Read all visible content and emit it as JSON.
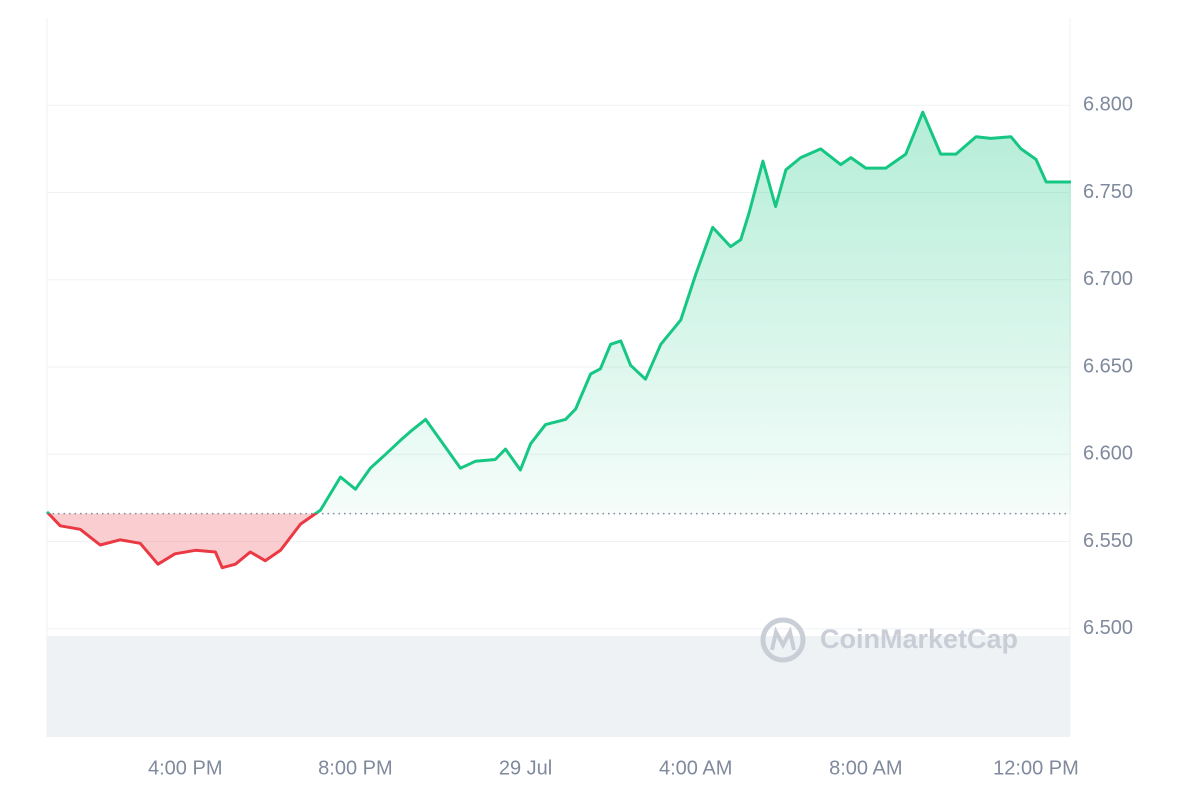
{
  "chart_data": {
    "type": "line",
    "watermark": "CoinMarketCap",
    "x": [
      12.75,
      13.06,
      13.53,
      14.0,
      14.47,
      14.94,
      15.36,
      15.76,
      16.24,
      16.71,
      16.87,
      17.18,
      17.53,
      17.88,
      18.24,
      18.71,
      19.18,
      19.65,
      20.0,
      20.35,
      20.71,
      21.06,
      21.34,
      21.65,
      22.0,
      22.47,
      22.82,
      23.29,
      23.53,
      23.88,
      24.12,
      24.47,
      24.94,
      25.18,
      25.53,
      25.76,
      26.0,
      26.24,
      26.47,
      26.82,
      27.18,
      27.65,
      28.0,
      28.4,
      28.82,
      29.06,
      29.25,
      29.58,
      29.88,
      30.12,
      30.47,
      30.94,
      31.41,
      31.65,
      32.0,
      32.47,
      32.94,
      33.34,
      33.76,
      34.12,
      34.59,
      34.94,
      35.41,
      35.65,
      36.0,
      36.24,
      36.59,
      36.82
    ],
    "values": [
      6.567,
      6.559,
      6.557,
      6.548,
      6.551,
      6.549,
      6.537,
      6.543,
      6.545,
      6.544,
      6.535,
      6.537,
      6.544,
      6.539,
      6.545,
      6.56,
      6.568,
      6.587,
      6.58,
      6.592,
      6.6,
      6.608,
      6.614,
      6.62,
      6.608,
      6.592,
      6.596,
      6.597,
      6.603,
      6.591,
      6.606,
      6.617,
      6.62,
      6.626,
      6.646,
      6.649,
      6.663,
      6.665,
      6.651,
      6.643,
      6.663,
      6.677,
      6.703,
      6.73,
      6.719,
      6.723,
      6.738,
      6.768,
      6.742,
      6.763,
      6.77,
      6.775,
      6.766,
      6.77,
      6.764,
      6.764,
      6.772,
      6.796,
      6.772,
      6.772,
      6.782,
      6.781,
      6.782,
      6.775,
      6.769,
      6.756,
      6.756,
      6.756
    ],
    "baseline": 6.566,
    "up_color": "#16c784",
    "down_color": "#ea3943",
    "xlim": [
      12.75,
      36.8
    ],
    "xticks": [
      {
        "value": 16,
        "label": "4:00 PM"
      },
      {
        "value": 20,
        "label": "8:00 PM"
      },
      {
        "value": 24,
        "label": "29 Jul"
      },
      {
        "value": 28,
        "label": "4:00 AM"
      },
      {
        "value": 32,
        "label": "8:00 AM"
      },
      {
        "value": 36,
        "label": "12:00 PM"
      }
    ],
    "ylim": [
      6.438,
      6.85
    ],
    "yticks": [
      {
        "value": 6.5,
        "label": "6.500"
      },
      {
        "value": 6.55,
        "label": "6.550"
      },
      {
        "value": 6.6,
        "label": "6.600"
      },
      {
        "value": 6.65,
        "label": "6.650"
      },
      {
        "value": 6.7,
        "label": "6.700"
      },
      {
        "value": 6.75,
        "label": "6.750"
      },
      {
        "value": 6.8,
        "label": "6.800"
      }
    ],
    "grid": true
  }
}
